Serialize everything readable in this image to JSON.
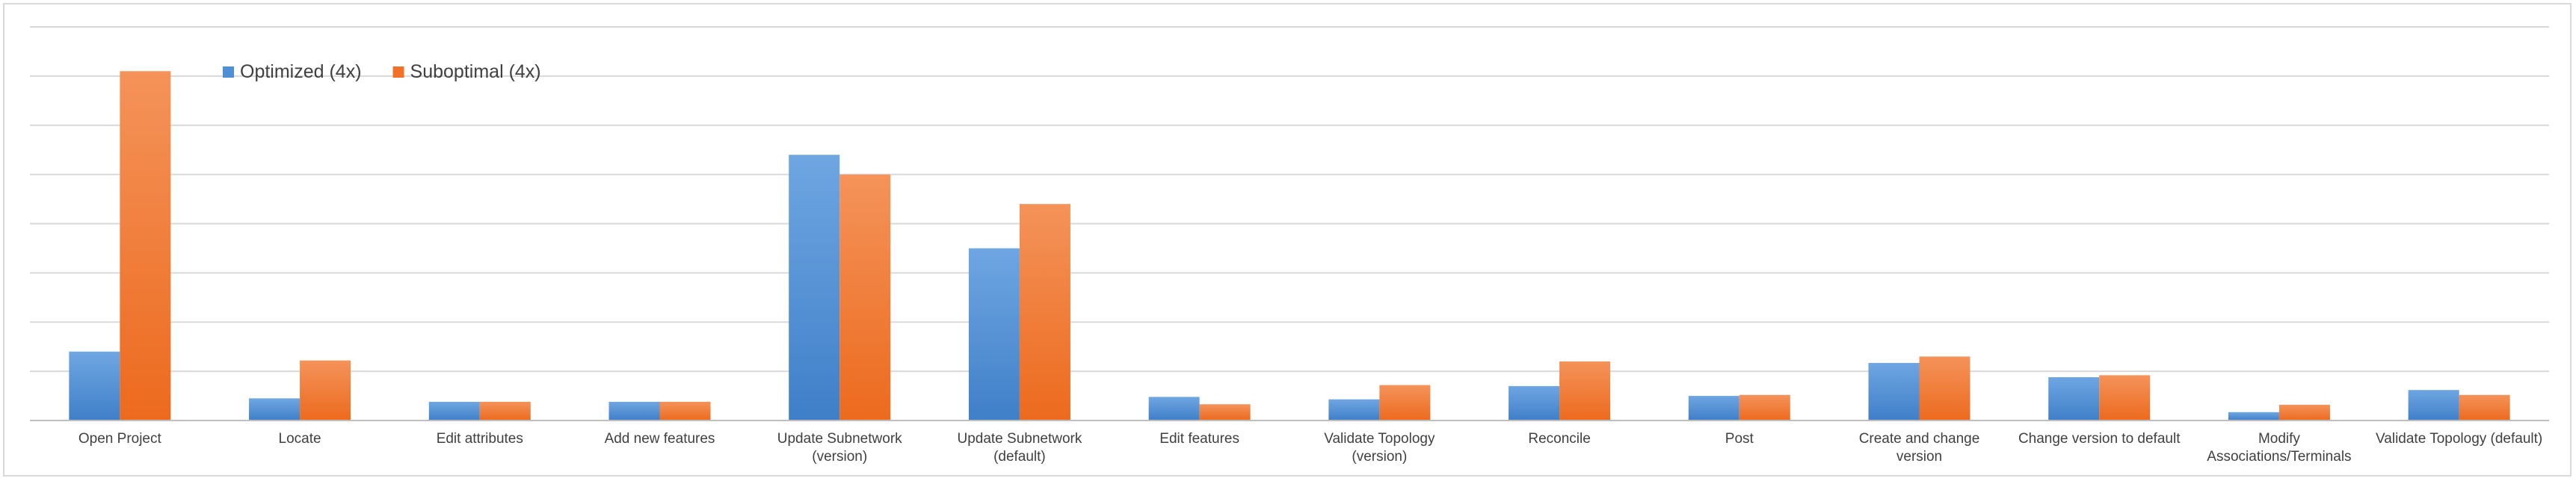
{
  "chart_data": {
    "type": "bar",
    "categories": [
      "Open Project",
      "Locate",
      "Edit attributes",
      "Add new features",
      "Update Subnetwork (version)",
      "Update Subnetwork (default)",
      "Edit features",
      "Validate Topology (version)",
      "Reconcile",
      "Post",
      "Create and change version",
      "Change version to default",
      "Modify Associations/Terminals",
      "Validate Topology (default)"
    ],
    "series": [
      {
        "name": "Optimized (4x)",
        "color": "#4e8fd6",
        "values": [
          1.4,
          0.45,
          0.38,
          0.38,
          5.4,
          3.5,
          0.48,
          0.43,
          0.7,
          0.5,
          1.17,
          0.88,
          0.17,
          0.62
        ]
      },
      {
        "name": "Suboptimal (4x)",
        "color": "#f17128",
        "values": [
          7.1,
          1.22,
          0.38,
          0.38,
          5.0,
          4.4,
          0.33,
          0.72,
          1.2,
          0.52,
          1.3,
          0.92,
          0.32,
          0.52
        ]
      }
    ],
    "ylim": [
      0,
      8
    ],
    "y_gridlines": 8,
    "y_tick_labels_shown": false,
    "grid": true,
    "legend_position": "top-left",
    "title": "",
    "xlabel": "",
    "ylabel": ""
  }
}
